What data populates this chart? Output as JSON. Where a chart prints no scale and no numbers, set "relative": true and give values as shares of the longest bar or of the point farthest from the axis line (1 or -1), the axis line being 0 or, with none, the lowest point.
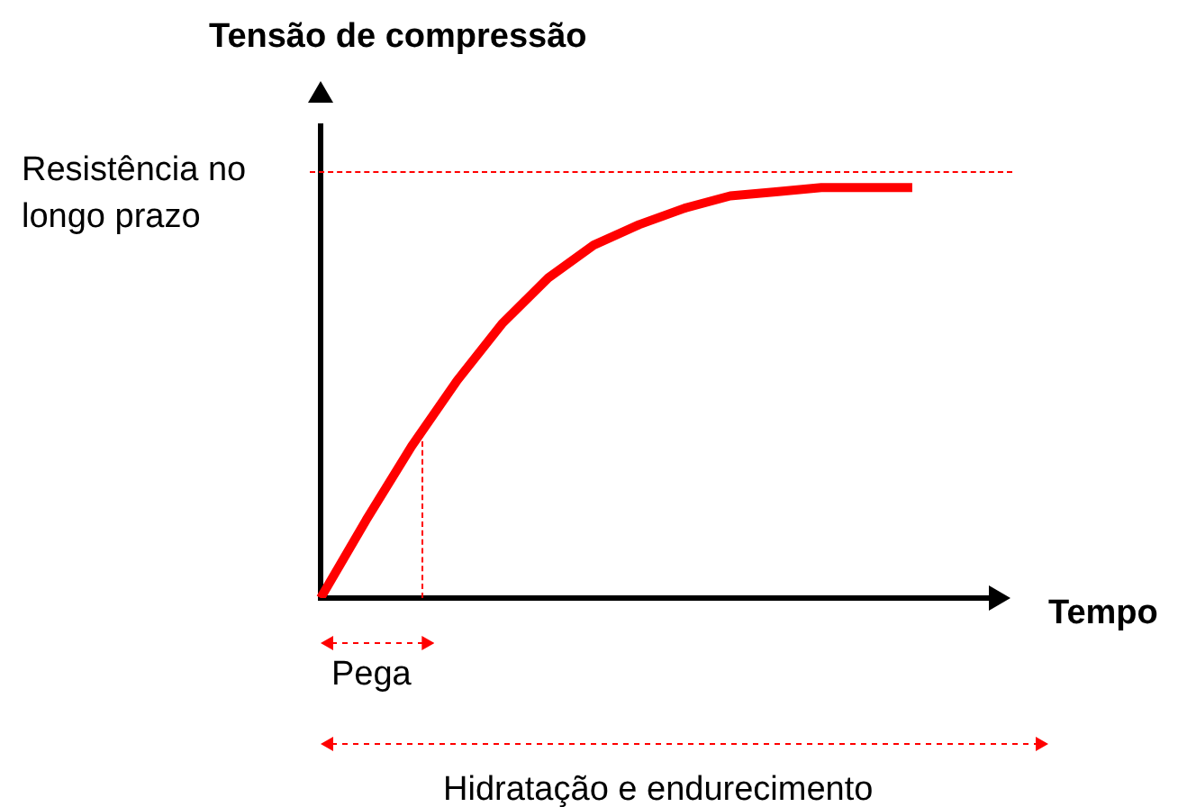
{
  "chart_data": {
    "type": "line",
    "relative": true,
    "ylabel": "Tensão de compressão",
    "xlabel": "Tempo",
    "tick_labels": false,
    "grid": false,
    "legend": false,
    "marker": "none",
    "categories": [
      null,
      null,
      null,
      null,
      null,
      null,
      null,
      null,
      null,
      null,
      null,
      null,
      null,
      null,
      null,
      null
    ],
    "series": [
      {
        "color": "#ff0000",
        "values": [
          0,
          0.19,
          0.37,
          0.53,
          0.67,
          0.78,
          0.86,
          0.91,
          0.95,
          0.98,
          0.99,
          1,
          1,
          1,
          null,
          null
        ]
      }
    ],
    "annotations": [
      "Resistência no longo prazo",
      "Pega",
      "Hidratação e endurecimento"
    ]
  }
}
